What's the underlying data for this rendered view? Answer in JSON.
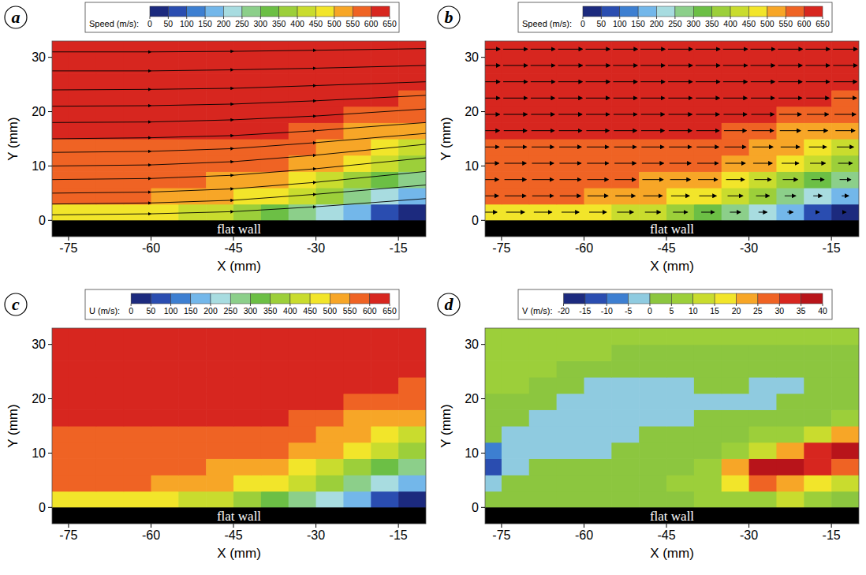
{
  "chart_data": [
    {
      "type": "heatmap",
      "panel_label": "a",
      "x_label": "X (mm)",
      "y_label": "Y (mm)",
      "wall_label": "flat wall",
      "xlim": [
        -78,
        -10
      ],
      "ylim": [
        -3,
        33
      ],
      "xticks": [
        -75,
        -60,
        -45,
        -30,
        -15
      ],
      "yticks": [
        0,
        10,
        20,
        30
      ],
      "x": [
        -77.5,
        -72.5,
        -67.5,
        -62.5,
        -57.5,
        -52.5,
        -47.5,
        -42.5,
        -37.5,
        -32.5,
        -27.5,
        -22.5,
        -17.5,
        -12.5
      ],
      "y": [
        1.5,
        4.5,
        7.5,
        10.5,
        13.5,
        16.5,
        19.5,
        22.5,
        25.5,
        28.5,
        31.5
      ],
      "cells": [
        [
          480,
          480,
          470,
          460,
          450,
          430,
          410,
          380,
          340,
          280,
          220,
          150,
          80,
          40
        ],
        [
          560,
          560,
          555,
          550,
          540,
          520,
          500,
          480,
          450,
          400,
          350,
          290,
          230,
          180
        ],
        [
          570,
          570,
          565,
          560,
          555,
          550,
          545,
          530,
          510,
          480,
          440,
          390,
          330,
          290
        ],
        [
          580,
          575,
          570,
          565,
          565,
          565,
          570,
          565,
          550,
          525,
          500,
          450,
          400,
          370
        ],
        [
          590,
          590,
          585,
          580,
          580,
          585,
          590,
          590,
          580,
          565,
          540,
          500,
          460,
          440
        ],
        [
          610,
          605,
          600,
          600,
          600,
          600,
          605,
          605,
          600,
          590,
          575,
          545,
          520,
          510
        ],
        [
          620,
          620,
          615,
          615,
          615,
          615,
          615,
          615,
          615,
          610,
          600,
          585,
          570,
          560
        ],
        [
          630,
          630,
          630,
          625,
          625,
          625,
          625,
          625,
          625,
          625,
          620,
          610,
          600,
          595
        ],
        [
          635,
          635,
          635,
          635,
          635,
          635,
          635,
          635,
          635,
          635,
          630,
          625,
          620,
          615
        ],
        [
          640,
          640,
          640,
          640,
          640,
          640,
          640,
          640,
          640,
          640,
          640,
          635,
          635,
          630
        ],
        [
          640,
          640,
          640,
          640,
          640,
          645,
          645,
          645,
          645,
          645,
          645,
          645,
          640,
          640
        ]
      ],
      "streamlines": [
        {
          "x": [
            -78,
            -60,
            -45,
            -30,
            -10
          ],
          "y": [
            1,
            1.2,
            1.6,
            2.5,
            4
          ]
        },
        {
          "x": [
            -78,
            -60,
            -45,
            -30,
            -10
          ],
          "y": [
            3,
            3.2,
            3.7,
            4.8,
            6.5
          ]
        },
        {
          "x": [
            -78,
            -60,
            -45,
            -30,
            -10
          ],
          "y": [
            5,
            5.2,
            5.8,
            7,
            9
          ]
        },
        {
          "x": [
            -78,
            -60,
            -45,
            -30,
            -10
          ],
          "y": [
            7.5,
            7.7,
            8.3,
            9.5,
            11.5
          ]
        },
        {
          "x": [
            -78,
            -60,
            -45,
            -30,
            -10
          ],
          "y": [
            10,
            10.2,
            10.8,
            12,
            14
          ]
        },
        {
          "x": [
            -78,
            -60,
            -45,
            -30,
            -10
          ],
          "y": [
            12.5,
            12.7,
            13.2,
            14.3,
            16
          ]
        },
        {
          "x": [
            -78,
            -60,
            -45,
            -30,
            -10
          ],
          "y": [
            15,
            15.2,
            15.6,
            16.5,
            18
          ]
        },
        {
          "x": [
            -78,
            -60,
            -45,
            -30,
            -10
          ],
          "y": [
            18,
            18.1,
            18.5,
            19.2,
            20.5
          ]
        },
        {
          "x": [
            -78,
            -60,
            -45,
            -30,
            -10
          ],
          "y": [
            21,
            21.1,
            21.4,
            22,
            23
          ]
        },
        {
          "x": [
            -78,
            -60,
            -45,
            -30,
            -10
          ],
          "y": [
            24,
            24.1,
            24.3,
            24.8,
            25.5
          ]
        },
        {
          "x": [
            -78,
            -60,
            -45,
            -30,
            -10
          ],
          "y": [
            27.5,
            27.5,
            27.7,
            28,
            28.5
          ]
        },
        {
          "x": [
            -78,
            -60,
            -45,
            -30,
            -10
          ],
          "y": [
            31,
            31,
            31.1,
            31.3,
            31.6
          ]
        }
      ],
      "colorbar": {
        "label": "Speed (m/s):",
        "range": [
          0,
          650
        ],
        "ticks": [
          0,
          50,
          100,
          150,
          200,
          250,
          300,
          350,
          400,
          450,
          500,
          550,
          600,
          650
        ],
        "colors": [
          "#1c2a7e",
          "#2a4db0",
          "#3d7fd1",
          "#73b7ea",
          "#a8dce0",
          "#8ccf8a",
          "#6cbf45",
          "#9ccf3a",
          "#c9dc2e",
          "#f2e52a",
          "#f7a627",
          "#ef6324",
          "#d7261f"
        ]
      }
    },
    {
      "type": "heatmap",
      "panel_label": "b",
      "x_label": "X (mm)",
      "y_label": "Y (mm)",
      "wall_label": "flat wall",
      "marker": "arrow",
      "xlim": [
        -78,
        -10
      ],
      "ylim": [
        -3,
        33
      ],
      "xticks": [
        -75,
        -60,
        -45,
        -30,
        -15
      ],
      "yticks": [
        0,
        10,
        20,
        30
      ],
      "x": [
        -77.5,
        -72.5,
        -67.5,
        -62.5,
        -57.5,
        -52.5,
        -47.5,
        -42.5,
        -37.5,
        -32.5,
        -27.5,
        -22.5,
        -17.5,
        -12.5
      ],
      "y": [
        1.5,
        4.5,
        7.5,
        10.5,
        13.5,
        16.5,
        19.5,
        22.5,
        25.5,
        28.5,
        31.5
      ],
      "cells": [
        [
          480,
          480,
          470,
          460,
          450,
          430,
          410,
          380,
          340,
          280,
          220,
          150,
          80,
          40
        ],
        [
          560,
          560,
          555,
          550,
          540,
          520,
          500,
          480,
          450,
          400,
          350,
          290,
          230,
          180
        ],
        [
          570,
          570,
          565,
          560,
          555,
          550,
          545,
          530,
          510,
          480,
          440,
          390,
          330,
          290
        ],
        [
          580,
          575,
          570,
          565,
          565,
          565,
          570,
          565,
          550,
          525,
          500,
          450,
          400,
          370
        ],
        [
          590,
          590,
          585,
          580,
          580,
          585,
          590,
          590,
          580,
          565,
          540,
          500,
          460,
          440
        ],
        [
          610,
          605,
          600,
          600,
          600,
          600,
          605,
          605,
          600,
          590,
          575,
          545,
          520,
          510
        ],
        [
          620,
          620,
          615,
          615,
          615,
          615,
          615,
          615,
          615,
          610,
          600,
          585,
          570,
          560
        ],
        [
          630,
          630,
          630,
          625,
          625,
          625,
          625,
          625,
          625,
          625,
          620,
          610,
          600,
          595
        ],
        [
          635,
          635,
          635,
          635,
          635,
          635,
          635,
          635,
          635,
          635,
          630,
          625,
          620,
          615
        ],
        [
          640,
          640,
          640,
          640,
          640,
          640,
          640,
          640,
          640,
          640,
          640,
          635,
          635,
          630
        ],
        [
          640,
          640,
          640,
          640,
          640,
          645,
          645,
          645,
          645,
          645,
          645,
          645,
          640,
          640
        ]
      ],
      "colorbar": {
        "label": "Speed (m/s):",
        "range": [
          0,
          650
        ],
        "ticks": [
          0,
          50,
          100,
          150,
          200,
          250,
          300,
          350,
          400,
          450,
          500,
          550,
          600,
          650
        ],
        "colors": [
          "#1c2a7e",
          "#2a4db0",
          "#3d7fd1",
          "#73b7ea",
          "#a8dce0",
          "#8ccf8a",
          "#6cbf45",
          "#9ccf3a",
          "#c9dc2e",
          "#f2e52a",
          "#f7a627",
          "#ef6324",
          "#d7261f"
        ]
      }
    },
    {
      "type": "heatmap",
      "panel_label": "c",
      "x_label": "X (mm)",
      "y_label": "Y (mm)",
      "wall_label": "flat wall",
      "xlim": [
        -78,
        -10
      ],
      "ylim": [
        -3,
        33
      ],
      "xticks": [
        -75,
        -60,
        -45,
        -30,
        -15
      ],
      "yticks": [
        0,
        10,
        20,
        30
      ],
      "x": [
        -77.5,
        -72.5,
        -67.5,
        -62.5,
        -57.5,
        -52.5,
        -47.5,
        -42.5,
        -37.5,
        -32.5,
        -27.5,
        -22.5,
        -17.5,
        -12.5
      ],
      "y": [
        1.5,
        4.5,
        7.5,
        10.5,
        13.5,
        16.5,
        19.5,
        22.5,
        25.5,
        28.5,
        31.5
      ],
      "cells": [
        [
          480,
          480,
          470,
          460,
          450,
          430,
          410,
          380,
          340,
          280,
          220,
          150,
          80,
          40
        ],
        [
          560,
          560,
          555,
          550,
          540,
          520,
          500,
          480,
          450,
          400,
          350,
          290,
          230,
          180
        ],
        [
          570,
          570,
          565,
          560,
          555,
          550,
          545,
          530,
          510,
          480,
          440,
          390,
          330,
          290
        ],
        [
          580,
          575,
          570,
          565,
          565,
          565,
          570,
          565,
          550,
          525,
          500,
          450,
          400,
          370
        ],
        [
          590,
          590,
          585,
          580,
          580,
          585,
          590,
          590,
          580,
          565,
          540,
          500,
          460,
          440
        ],
        [
          610,
          605,
          600,
          600,
          600,
          600,
          605,
          605,
          600,
          590,
          575,
          545,
          520,
          510
        ],
        [
          620,
          620,
          615,
          615,
          615,
          615,
          615,
          615,
          615,
          610,
          600,
          585,
          570,
          560
        ],
        [
          630,
          630,
          630,
          625,
          625,
          625,
          625,
          625,
          625,
          625,
          620,
          610,
          600,
          595
        ],
        [
          635,
          635,
          635,
          635,
          635,
          635,
          635,
          635,
          635,
          635,
          630,
          625,
          620,
          615
        ],
        [
          640,
          640,
          640,
          640,
          640,
          640,
          640,
          640,
          640,
          640,
          640,
          635,
          635,
          630
        ],
        [
          640,
          640,
          640,
          640,
          640,
          645,
          645,
          645,
          645,
          645,
          645,
          645,
          640,
          640
        ]
      ],
      "colorbar": {
        "label": "U (m/s):",
        "range": [
          0,
          650
        ],
        "ticks": [
          0,
          50,
          100,
          150,
          200,
          250,
          300,
          350,
          400,
          450,
          500,
          550,
          600,
          650
        ],
        "colors": [
          "#1c2a7e",
          "#2a4db0",
          "#3d7fd1",
          "#73b7ea",
          "#a8dce0",
          "#8ccf8a",
          "#6cbf45",
          "#9ccf3a",
          "#c9dc2e",
          "#f2e52a",
          "#f7a627",
          "#ef6324",
          "#d7261f"
        ]
      }
    },
    {
      "type": "heatmap",
      "panel_label": "d",
      "x_label": "X (mm)",
      "y_label": "Y (mm)",
      "wall_label": "flat wall",
      "xlim": [
        -78,
        -10
      ],
      "ylim": [
        -3,
        33
      ],
      "xticks": [
        -75,
        -60,
        -45,
        -30,
        -15
      ],
      "yticks": [
        0,
        10,
        20,
        30
      ],
      "x": [
        -77.5,
        -72.5,
        -67.5,
        -62.5,
        -57.5,
        -52.5,
        -47.5,
        -42.5,
        -37.5,
        -32.5,
        -27.5,
        -22.5,
        -17.5,
        -12.5
      ],
      "y": [
        1.5,
        4.5,
        7.5,
        10.5,
        13.5,
        16.5,
        19.5,
        22.5,
        25.5,
        28.5,
        31.5
      ],
      "cells": [
        [
          0,
          0,
          0,
          0,
          0,
          0,
          0,
          0,
          5,
          5,
          5,
          10,
          5,
          0
        ],
        [
          -5,
          0,
          0,
          0,
          0,
          0,
          0,
          5,
          5,
          15,
          25,
          20,
          15,
          10
        ],
        [
          -15,
          -5,
          0,
          0,
          0,
          0,
          0,
          0,
          5,
          20,
          35,
          35,
          30,
          25
        ],
        [
          -10,
          -5,
          -5,
          -5,
          -5,
          0,
          0,
          0,
          0,
          5,
          10,
          20,
          30,
          35
        ],
        [
          0,
          -5,
          -5,
          -5,
          -5,
          -5,
          0,
          0,
          0,
          0,
          5,
          5,
          10,
          20
        ],
        [
          0,
          0,
          -5,
          -5,
          -5,
          -5,
          -5,
          -5,
          0,
          0,
          0,
          0,
          0,
          5
        ],
        [
          0,
          0,
          0,
          -5,
          -5,
          -5,
          -5,
          -5,
          -5,
          -5,
          -5,
          0,
          0,
          0
        ],
        [
          5,
          5,
          0,
          0,
          -5,
          -5,
          -5,
          -5,
          0,
          0,
          -5,
          -5,
          0,
          0
        ],
        [
          5,
          5,
          5,
          0,
          0,
          0,
          0,
          0,
          0,
          0,
          0,
          0,
          0,
          0
        ],
        [
          5,
          5,
          5,
          5,
          5,
          0,
          0,
          0,
          0,
          0,
          0,
          0,
          0,
          0
        ],
        [
          5,
          5,
          5,
          5,
          5,
          5,
          5,
          5,
          5,
          5,
          5,
          5,
          5,
          5
        ]
      ],
      "colorbar": {
        "label": "V (m/s):",
        "range": [
          -20,
          40
        ],
        "ticks": [
          -20,
          -15,
          -10,
          -5,
          0,
          5,
          10,
          15,
          20,
          25,
          30,
          35,
          40
        ],
        "colors": [
          "#1c2a7e",
          "#2a4db0",
          "#3d7fd1",
          "#8fcbe0",
          "#8cc63f",
          "#9ccf3a",
          "#c9dc2e",
          "#f2e52a",
          "#f7a627",
          "#ef6324",
          "#d7261f",
          "#b8141a"
        ]
      }
    }
  ]
}
